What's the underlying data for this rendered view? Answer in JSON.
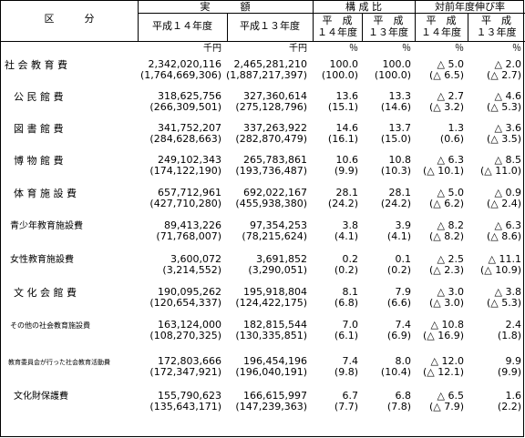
{
  "header": {
    "category": "区　　　分",
    "actual": "実　　　額",
    "composition": "構 成 比",
    "growth": "対前年度伸び率",
    "fy14": "平成１４年度",
    "fy13": "平成１３年度",
    "heisei": "平　成",
    "fy14b": "１４年度",
    "fy13b": "１３年度",
    "unit_yen": "千円",
    "unit_pct": "％"
  },
  "rows": [
    {
      "name": "社 会 教 育 費",
      "a14": "2,342,020,116",
      "a13": "2,465,281,210",
      "c14": "100.0",
      "c13": "100.0",
      "g14": "△ 5.0",
      "g13": "△ 2.0",
      "p14": "(1,764,669,306)",
      "p13": "(1,887,217,397)",
      "pc14": "(100.0)",
      "pc13": "(100.0)",
      "pg14": "(△ 6.5)",
      "pg13": "(△ 2.7)"
    },
    {
      "name": "公 民 館 費",
      "a14": "318,625,756",
      "a13": "327,360,614",
      "c14": "13.6",
      "c13": "13.3",
      "g14": "△ 2.7",
      "g13": "△ 4.6",
      "p14": "(266,309,501)",
      "p13": "(275,128,796)",
      "pc14": "(15.1)",
      "pc13": "(14.6)",
      "pg14": "(△ 3.2)",
      "pg13": "(△ 5.3)"
    },
    {
      "name": "図 書 館 費",
      "a14": "341,752,207",
      "a13": "337,263,922",
      "c14": "14.6",
      "c13": "13.7",
      "g14": "1.3",
      "g13": "△ 3.6",
      "p14": "(284,628,663)",
      "p13": "(282,870,479)",
      "pc14": "(16.1)",
      "pc13": "(15.0)",
      "pg14": "(0.6)",
      "pg13": "(△ 3.5)"
    },
    {
      "name": "博 物 館 費",
      "a14": "249,102,343",
      "a13": "265,783,861",
      "c14": "10.6",
      "c13": "10.8",
      "g14": "△ 6.3",
      "g13": "△ 8.5",
      "p14": "(174,122,190)",
      "p13": "(193,736,487)",
      "pc14": "(9.9)",
      "pc13": "(10.3)",
      "pg14": "(△ 10.1)",
      "pg13": "(△ 11.0)"
    },
    {
      "name": "体 育 施 設 費",
      "a14": "657,712,961",
      "a13": "692,022,167",
      "c14": "28.1",
      "c13": "28.1",
      "g14": "△ 5.0",
      "g13": "△ 0.9",
      "p14": "(427,710,280)",
      "p13": "(455,938,380)",
      "pc14": "(24.2)",
      "pc13": "(24.2)",
      "pg14": "(△ 6.2)",
      "pg13": "(△ 2.4)"
    },
    {
      "name": "青少年教育施設費",
      "a14": "89,413,226",
      "a13": "97,354,253",
      "c14": "3.8",
      "c13": "3.9",
      "g14": "△ 8.2",
      "g13": "△ 6.3",
      "p14": "(71,768,007)",
      "p13": "(78,215,624)",
      "pc14": "(4.1)",
      "pc13": "(4.1)",
      "pg14": "(△ 8.2)",
      "pg13": "(△ 8.6)"
    },
    {
      "name": "女性教育施設費",
      "a14": "3,600,072",
      "a13": "3,691,852",
      "c14": "0.2",
      "c13": "0.1",
      "g14": "△ 2.5",
      "g13": "△ 11.1",
      "p14": "(3,214,552)",
      "p13": "(3,290,051)",
      "pc14": "(0.2)",
      "pc13": "(0.2)",
      "pg14": "(△ 2.3)",
      "pg13": "(△ 10.9)"
    },
    {
      "name": "文 化 会 館 費",
      "a14": "190,095,262",
      "a13": "195,918,804",
      "c14": "8.1",
      "c13": "7.9",
      "g14": "△ 3.0",
      "g13": "△ 3.8",
      "p14": "(120,654,337)",
      "p13": "(124,422,175)",
      "pc14": "(6.8)",
      "pc13": "(6.6)",
      "pg14": "(△ 3.0)",
      "pg13": "(△ 5.3)"
    },
    {
      "name": "その他の社会教育施設費",
      "a14": "163,124,000",
      "a13": "182,815,544",
      "c14": "7.0",
      "c13": "7.4",
      "g14": "△ 10.8",
      "g13": "2.4",
      "p14": "(108,270,325)",
      "p13": "(130,335,851)",
      "pc14": "(6.1)",
      "pc13": "(6.9)",
      "pg14": "(△ 16.9)",
      "pg13": "(1.8)"
    },
    {
      "name": "教育委員会が行った社会教育活動費",
      "a14": "172,803,666",
      "a13": "196,454,196",
      "c14": "7.4",
      "c13": "8.0",
      "g14": "△ 12.0",
      "g13": "9.9",
      "p14": "(172,347,921)",
      "p13": "(196,040,191)",
      "pc14": "(9.8)",
      "pc13": "(10.4)",
      "pg14": "(△ 12.1)",
      "pg13": "(9.9)"
    },
    {
      "name": "文化財保護費",
      "a14": "155,790,623",
      "a13": "166,615,997",
      "c14": "6.7",
      "c13": "6.8",
      "g14": "△ 6.5",
      "g13": "1.6",
      "p14": "(135,643,171)",
      "p13": "(147,239,363)",
      "pc14": "(7.7)",
      "pc13": "(7.8)",
      "pg14": "(△ 7.9)",
      "pg13": "(2.2)"
    }
  ]
}
